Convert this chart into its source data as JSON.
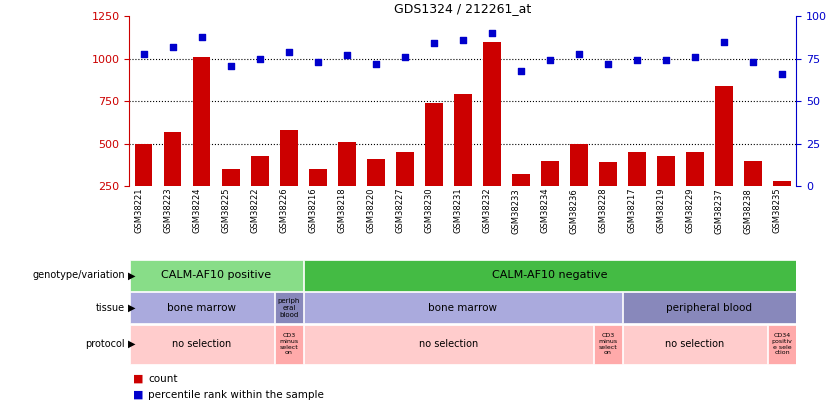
{
  "title": "GDS1324 / 212261_at",
  "samples": [
    "GSM38221",
    "GSM38223",
    "GSM38224",
    "GSM38225",
    "GSM38222",
    "GSM38226",
    "GSM38216",
    "GSM38218",
    "GSM38220",
    "GSM38227",
    "GSM38230",
    "GSM38231",
    "GSM38232",
    "GSM38233",
    "GSM38234",
    "GSM38236",
    "GSM38228",
    "GSM38217",
    "GSM38219",
    "GSM38229",
    "GSM38237",
    "GSM38238",
    "GSM38235"
  ],
  "counts": [
    500,
    570,
    1010,
    350,
    430,
    580,
    350,
    510,
    410,
    450,
    740,
    790,
    1100,
    320,
    400,
    500,
    390,
    450,
    430,
    450,
    840,
    400,
    280
  ],
  "percentiles": [
    78,
    82,
    88,
    71,
    75,
    79,
    73,
    77,
    72,
    76,
    84,
    86,
    90,
    68,
    74,
    78,
    72,
    74,
    74,
    76,
    85,
    73,
    66
  ],
  "bar_color": "#cc0000",
  "scatter_color": "#0000cc",
  "ylim_left": [
    250,
    1250
  ],
  "ylim_right": [
    0,
    100
  ],
  "yticks_left": [
    250,
    500,
    750,
    1000,
    1250
  ],
  "yticks_right": [
    0,
    25,
    50,
    75,
    100
  ],
  "grid_values": [
    500,
    750,
    1000
  ],
  "genotype_groups": [
    {
      "label": "CALM-AF10 positive",
      "start": 0,
      "end": 6,
      "color": "#88dd88"
    },
    {
      "label": "CALM-AF10 negative",
      "start": 6,
      "end": 23,
      "color": "#44bb44"
    }
  ],
  "tissue_groups": [
    {
      "label": "bone marrow",
      "start": 0,
      "end": 5,
      "color": "#aaaadd"
    },
    {
      "label": "periph\neral\nblood",
      "start": 5,
      "end": 6,
      "color": "#8888bb"
    },
    {
      "label": "bone marrow",
      "start": 6,
      "end": 17,
      "color": "#aaaadd"
    },
    {
      "label": "peripheral blood",
      "start": 17,
      "end": 23,
      "color": "#8888bb"
    }
  ],
  "protocol_groups": [
    {
      "label": "no selection",
      "start": 0,
      "end": 5,
      "color": "#ffcccc"
    },
    {
      "label": "CD3\nminus\nselect\non",
      "start": 5,
      "end": 6,
      "color": "#ffaaaa"
    },
    {
      "label": "no selection",
      "start": 6,
      "end": 16,
      "color": "#ffcccc"
    },
    {
      "label": "CD3\nminus\nselect\non",
      "start": 16,
      "end": 17,
      "color": "#ffaaaa"
    },
    {
      "label": "no selection",
      "start": 17,
      "end": 22,
      "color": "#ffcccc"
    },
    {
      "label": "CD34\npositiv\ne sele\nction",
      "start": 22,
      "end": 23,
      "color": "#ffaaaa"
    }
  ],
  "row_labels": [
    "genotype/variation",
    "tissue",
    "protocol"
  ],
  "bg_color": "#ffffff"
}
